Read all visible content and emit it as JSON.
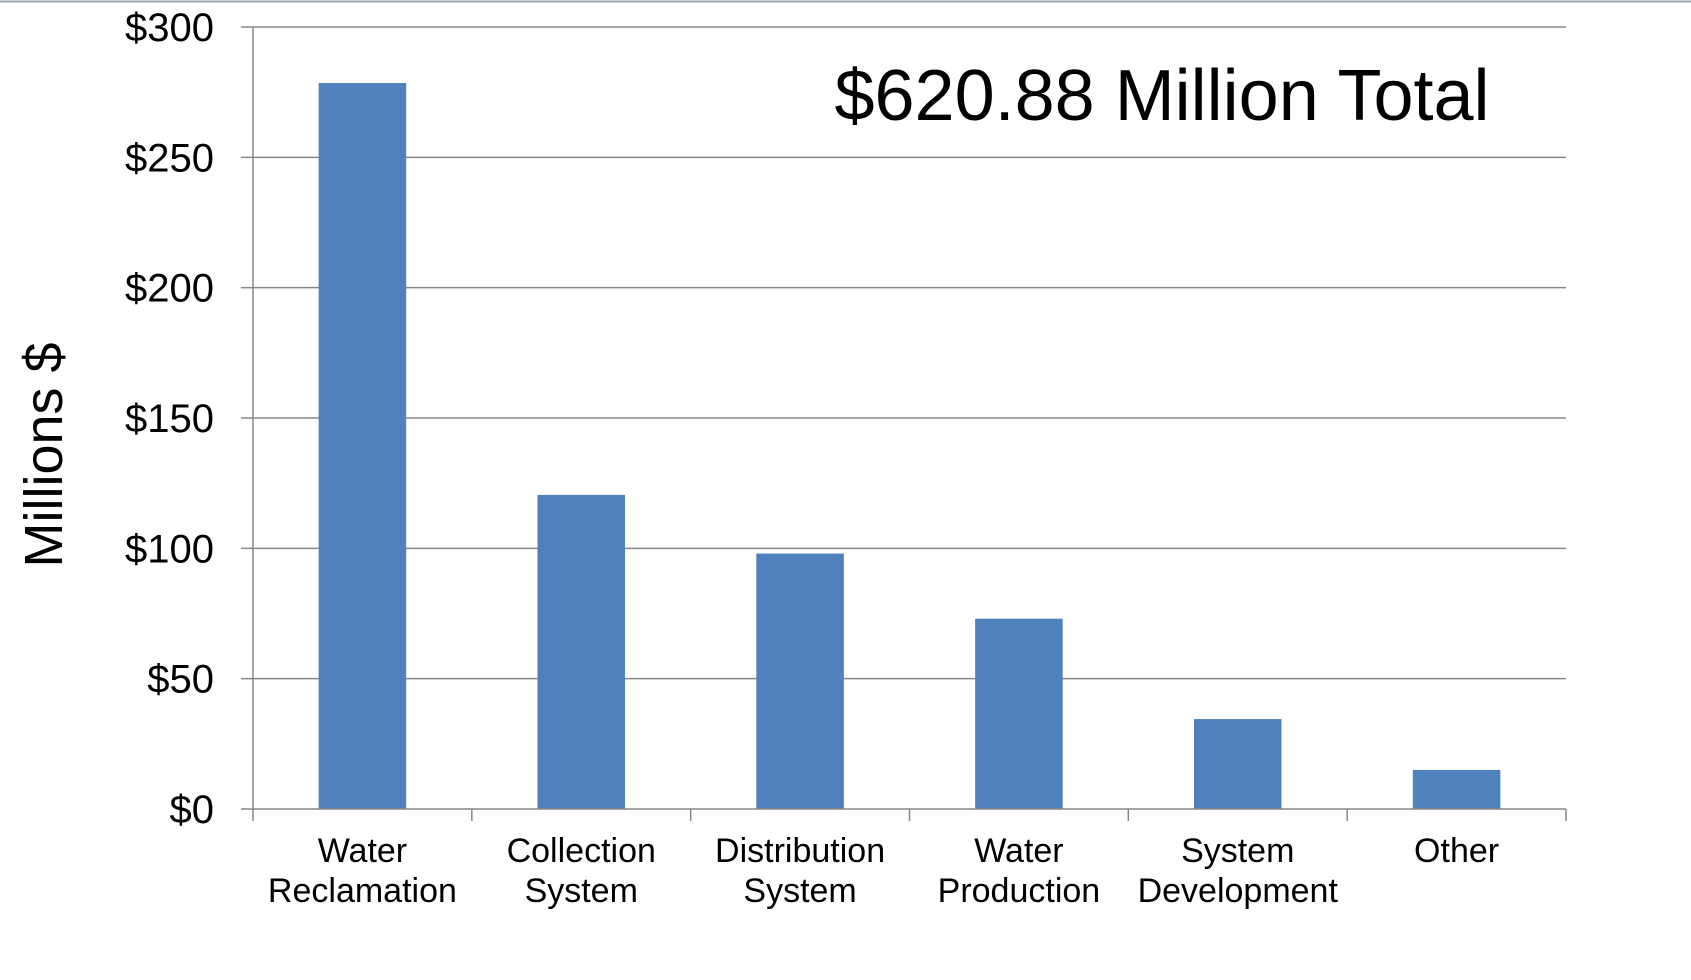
{
  "chart_data": {
    "type": "bar",
    "title": "",
    "annotation": "$620.88 Million Total",
    "ylabel": "Millions $",
    "xlabel": "",
    "categories": [
      [
        "Water",
        "Reclamation"
      ],
      [
        "Collection",
        "System"
      ],
      [
        "Distribution",
        "System"
      ],
      [
        "Water",
        "Production"
      ],
      [
        "System",
        "Development"
      ],
      [
        "Other"
      ]
    ],
    "values": [
      278.5,
      120.5,
      98.0,
      73.0,
      34.5,
      15.0
    ],
    "ylim": [
      0,
      300
    ],
    "yticks": [
      0,
      50,
      100,
      150,
      200,
      250,
      300
    ],
    "ytick_labels": [
      "$0",
      "$50",
      "$100",
      "$150",
      "$200",
      "$250",
      "$300"
    ],
    "grid": true,
    "legend": "none",
    "bar_color": "#4F81BD",
    "grid_color": "#878787"
  }
}
